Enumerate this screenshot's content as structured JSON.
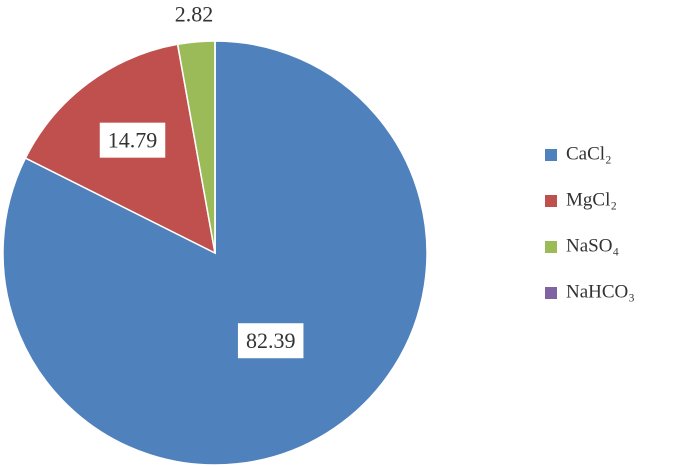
{
  "chart_data": {
    "type": "pie",
    "categories": [
      "CaCl₂",
      "MgCl₂",
      "NaSO₄",
      "NaHCO₃"
    ],
    "values": [
      82.39,
      14.79,
      2.82,
      0
    ],
    "colors": [
      "#4f81bd",
      "#c0504d",
      "#9bbb59",
      "#8064a2"
    ],
    "legend": "right"
  }
}
